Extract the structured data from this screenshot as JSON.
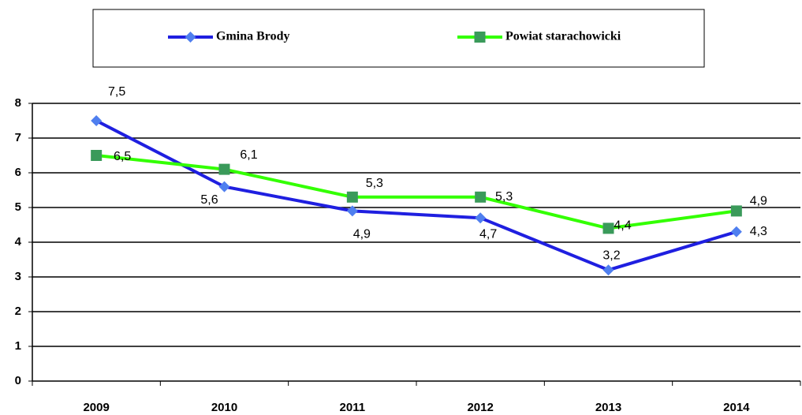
{
  "chart_data": {
    "type": "line",
    "categories": [
      "2009",
      "2010",
      "2011",
      "2012",
      "2013",
      "2014"
    ],
    "series": [
      {
        "name": "Gmina Brody",
        "color": "#1f1fe0",
        "marker_color": "#4f7fef",
        "marker": "diamond",
        "values": [
          7.5,
          5.6,
          4.9,
          4.7,
          3.2,
          4.3
        ],
        "value_labels": [
          "7,5",
          "5,6",
          "4,9",
          "4,7",
          "3,2",
          "4,3"
        ]
      },
      {
        "name": "Powiat starachowicki",
        "color": "#33ff00",
        "marker_color": "#3a9a5a",
        "marker": "square",
        "values": [
          6.5,
          6.1,
          5.3,
          5.3,
          4.4,
          4.9
        ],
        "value_labels": [
          "6,5",
          "6,1",
          "5,3",
          "5,3",
          "4,4",
          "4,9"
        ]
      }
    ],
    "ylim": [
      0,
      8
    ],
    "yticks": [
      0,
      1,
      2,
      3,
      4,
      5,
      6,
      7,
      8
    ],
    "grid": true,
    "legend": "top"
  }
}
